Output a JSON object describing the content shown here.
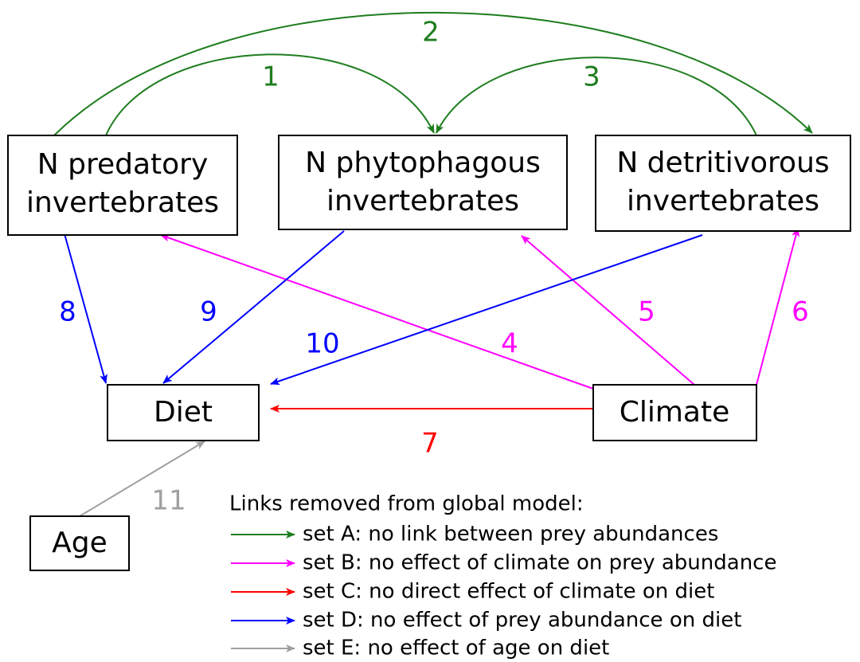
{
  "nodes": [
    {
      "lines": [
        "N predatory",
        "invertebrates"
      ]
    },
    {
      "lines": [
        "N phytophagous",
        "invertebrates"
      ]
    },
    {
      "lines": [
        "N detritivorous",
        "invertebrates"
      ]
    },
    {
      "lines": [
        "Diet"
      ]
    },
    {
      "lines": [
        "Climate"
      ]
    },
    {
      "lines": [
        "Age"
      ]
    }
  ],
  "edges": [
    {
      "label": "1"
    },
    {
      "label": "2"
    },
    {
      "label": "3"
    },
    {
      "label": "4"
    },
    {
      "label": "5"
    },
    {
      "label": "6"
    },
    {
      "label": "7"
    },
    {
      "label": "8"
    },
    {
      "label": "9"
    },
    {
      "label": "10"
    },
    {
      "label": "11"
    }
  ],
  "legend": {
    "title": "Links removed from global model:",
    "items": [
      "set A: no link between prey abundances",
      "set B: no effect of climate on prey abundance",
      "set C: no direct effect of climate on diet",
      "set D: no effect of prey abundance on diet",
      "set E: no effect of age on diet"
    ]
  }
}
